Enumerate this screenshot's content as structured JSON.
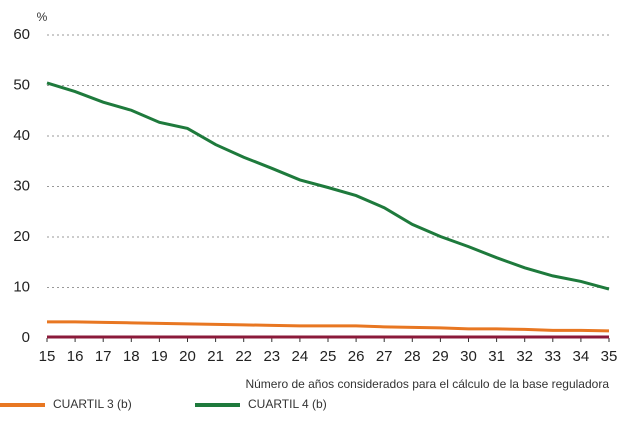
{
  "chart_data": {
    "type": "line",
    "y_axis_label": "%",
    "x_axis_label": "Número de años considerados para el cálculo de la base reguladora",
    "x": [
      15,
      16,
      17,
      18,
      19,
      20,
      21,
      22,
      23,
      24,
      25,
      26,
      27,
      28,
      29,
      30,
      31,
      32,
      33,
      34,
      35
    ],
    "xlim": [
      15,
      35
    ],
    "xticks": [
      15,
      16,
      17,
      18,
      19,
      20,
      21,
      22,
      23,
      24,
      25,
      26,
      27,
      28,
      29,
      30,
      31,
      32,
      33,
      34,
      35
    ],
    "ylim": [
      0,
      60
    ],
    "yticks": [
      0,
      10,
      20,
      30,
      40,
      50,
      60
    ],
    "grid": true,
    "series": [
      {
        "name": "CUARTIL 3 (b)",
        "color": "#e87722",
        "values": [
          3.2,
          3.2,
          3.1,
          3.0,
          2.9,
          2.8,
          2.7,
          2.6,
          2.5,
          2.4,
          2.4,
          2.4,
          2.2,
          2.1,
          2.0,
          1.8,
          1.8,
          1.7,
          1.5,
          1.5,
          1.4
        ]
      },
      {
        "name": "CUARTIL 4 (b)",
        "color": "#1e7a3c",
        "values": [
          50.5,
          48.8,
          46.7,
          45.1,
          42.7,
          41.5,
          38.3,
          35.8,
          33.6,
          31.3,
          29.8,
          28.2,
          25.8,
          22.5,
          20.1,
          18.1,
          15.9,
          13.9,
          12.3,
          11.2,
          9.7
        ]
      },
      {
        "color": "#8b1a3a",
        "values": [
          0.2,
          0.2,
          0.2,
          0.2,
          0.2,
          0.2,
          0.2,
          0.2,
          0.2,
          0.2,
          0.2,
          0.2,
          0.2,
          0.2,
          0.2,
          0.2,
          0.2,
          0.2,
          0.2,
          0.2,
          0.2
        ]
      }
    ]
  }
}
